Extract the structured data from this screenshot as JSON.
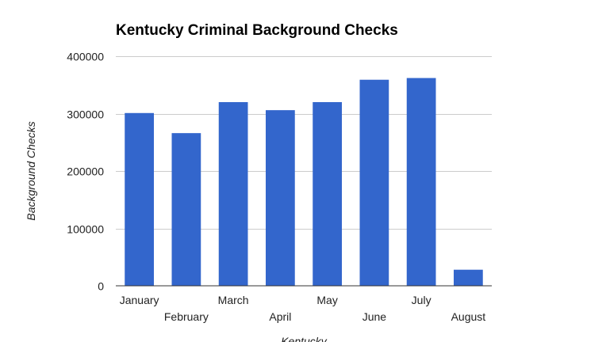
{
  "chart_data": {
    "type": "bar",
    "title": "Kentucky Criminal Background Checks",
    "xlabel": "Kentucky",
    "ylabel": "Background Checks",
    "categories": [
      "January",
      "February",
      "March",
      "April",
      "May",
      "June",
      "July",
      "August"
    ],
    "values": [
      301000,
      266000,
      320000,
      306000,
      320000,
      359000,
      362000,
      28000
    ],
    "ylim": [
      0,
      400000
    ],
    "yticks": [
      "0",
      "100000",
      "200000",
      "300000",
      "400000"
    ],
    "grid": true,
    "legend": "none",
    "bar_color": "#3366cc"
  }
}
